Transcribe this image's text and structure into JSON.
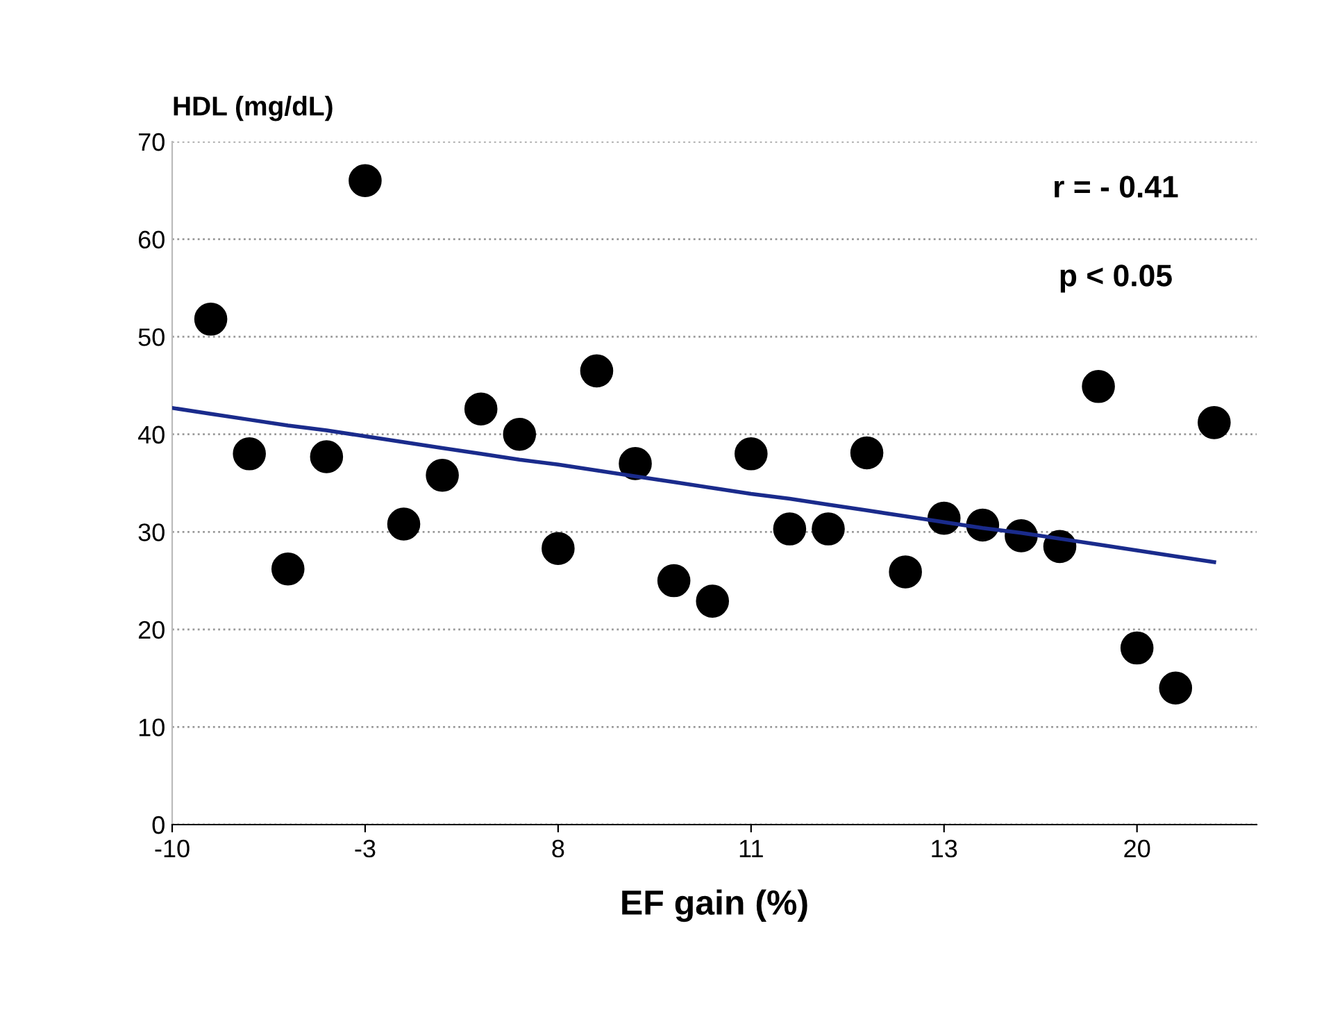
{
  "chart_data": {
    "type": "scatter",
    "xlabel": "EF gain (%)",
    "ylabel": "HDL (mg/dL)",
    "categories": [
      "-10",
      null,
      null,
      null,
      null,
      "-3",
      null,
      null,
      null,
      null,
      "8",
      null,
      null,
      null,
      null,
      "11",
      null,
      null,
      null,
      null,
      "13",
      null,
      null,
      null,
      null,
      "20",
      null,
      null
    ],
    "series": [
      {
        "color": "#000000",
        "marker": "circle",
        "values": [
          null,
          51.8,
          38,
          26.2,
          37.7,
          66,
          30.8,
          35.8,
          42.6,
          40,
          28.3,
          46.5,
          37,
          25,
          22.9,
          38,
          30.3,
          30.3,
          38.1,
          25.9,
          31.4,
          30.7,
          29.6,
          28.5,
          44.9,
          18.1,
          14,
          41.2
        ]
      },
      {
        "type": "line",
        "color": "#1a2b8c",
        "values": [
          42.7,
          42.1,
          41.5,
          40.9,
          40.4,
          39.8,
          39.2,
          38.6,
          38.0,
          37.4,
          36.9,
          36.3,
          35.7,
          35.1,
          34.5,
          33.9,
          33.4,
          32.8,
          32.2,
          31.6,
          31.0,
          30.4,
          29.9,
          29.3,
          28.7,
          28.1,
          27.5,
          26.9
        ]
      }
    ],
    "ylim": [
      0,
      70
    ],
    "yticks": [
      0,
      10,
      20,
      30,
      40,
      50,
      60,
      70
    ],
    "grid": "y",
    "annotations": [
      "r = - 0.41",
      "p < 0.05"
    ]
  }
}
